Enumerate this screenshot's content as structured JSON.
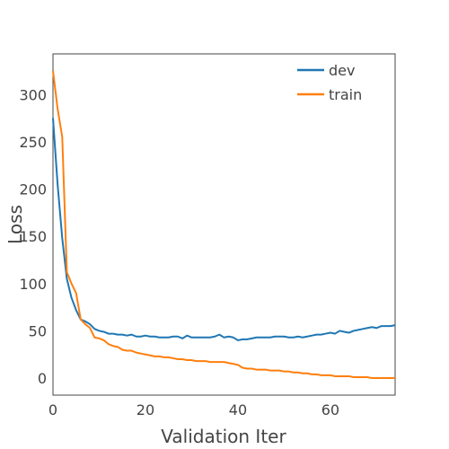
{
  "chart_data": {
    "type": "line",
    "title": "",
    "xlabel": "Validation Iter",
    "ylabel": "Loss",
    "xlim": [
      0,
      74
    ],
    "ylim": [
      -18,
      343
    ],
    "xticks": [
      0,
      20,
      40,
      60
    ],
    "yticks": [
      0,
      50,
      100,
      150,
      200,
      250,
      300
    ],
    "grid": false,
    "legend_position": "top-right",
    "series": [
      {
        "name": "dev",
        "color": "#1f77b4",
        "x": [
          0,
          1,
          2,
          3,
          4,
          5,
          6,
          7,
          8,
          9,
          10,
          11,
          12,
          13,
          14,
          15,
          16,
          17,
          18,
          19,
          20,
          21,
          22,
          23,
          24,
          25,
          26,
          27,
          28,
          29,
          30,
          31,
          32,
          33,
          34,
          35,
          36,
          37,
          38,
          39,
          40,
          41,
          42,
          43,
          44,
          45,
          46,
          47,
          48,
          49,
          50,
          51,
          52,
          53,
          54,
          55,
          56,
          57,
          58,
          59,
          60,
          61,
          62,
          63,
          64,
          65,
          66,
          67,
          68,
          69,
          70,
          71,
          72,
          73,
          74
        ],
        "values": [
          275,
          205,
          148,
          105,
          85,
          72,
          62,
          60,
          57,
          52,
          50,
          49,
          47,
          47,
          46,
          46,
          45,
          46,
          44,
          44,
          45,
          44,
          44,
          43,
          43,
          43,
          44,
          44,
          42,
          45,
          43,
          43,
          43,
          43,
          43,
          44,
          46,
          43,
          44,
          43,
          40,
          41,
          41,
          42,
          43,
          43,
          43,
          43,
          44,
          44,
          44,
          43,
          43,
          44,
          43,
          44,
          45,
          46,
          46,
          47,
          48,
          47,
          50,
          49,
          48,
          50,
          51,
          52,
          53,
          54,
          53,
          55,
          55,
          55,
          56
        ]
      },
      {
        "name": "train",
        "color": "#ff7f0e",
        "x": [
          0,
          1,
          2,
          3,
          4,
          5,
          6,
          7,
          8,
          9,
          10,
          11,
          12,
          13,
          14,
          15,
          16,
          17,
          18,
          19,
          20,
          21,
          22,
          23,
          24,
          25,
          26,
          27,
          28,
          29,
          30,
          31,
          32,
          33,
          34,
          35,
          36,
          37,
          38,
          39,
          40,
          41,
          42,
          43,
          44,
          45,
          46,
          47,
          48,
          49,
          50,
          51,
          52,
          53,
          54,
          55,
          56,
          57,
          58,
          59,
          60,
          61,
          62,
          63,
          64,
          65,
          66,
          67,
          68,
          69,
          70,
          71,
          72,
          73,
          74
        ],
        "values": [
          325,
          285,
          255,
          112,
          100,
          90,
          62,
          57,
          53,
          43,
          42,
          40,
          36,
          34,
          33,
          30,
          29,
          29,
          27,
          26,
          25,
          24,
          23,
          23,
          22,
          22,
          21,
          20,
          20,
          19,
          19,
          18,
          18,
          18,
          17,
          17,
          17,
          17,
          16,
          15,
          14,
          11,
          10,
          10,
          9,
          9,
          9,
          8,
          8,
          8,
          7,
          7,
          6,
          6,
          5,
          5,
          4,
          4,
          3,
          3,
          3,
          2,
          2,
          2,
          2,
          1,
          1,
          1,
          1,
          0,
          0,
          0,
          0,
          0,
          0
        ]
      }
    ]
  }
}
